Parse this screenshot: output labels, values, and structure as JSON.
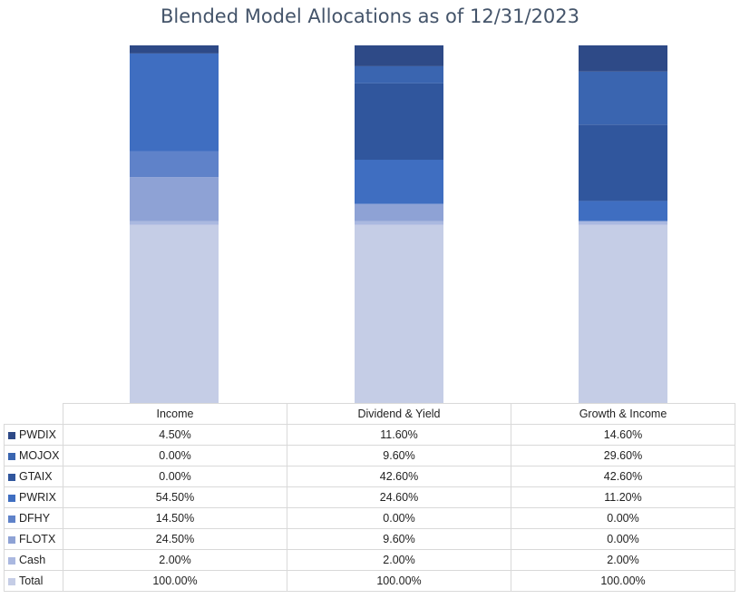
{
  "chart_data": {
    "type": "bar",
    "stacked": true,
    "title": "Blended Model Allocations as of 12/31/2023",
    "categories": [
      "Income",
      "Dividend & Yield",
      "Growth & Income"
    ],
    "series": [
      {
        "name": "PWDIX",
        "values": [
          "4.50%",
          "11.60%",
          "14.60%"
        ],
        "numeric": [
          4.5,
          11.6,
          14.6
        ],
        "color": "#2e4a87"
      },
      {
        "name": "MOJOX",
        "values": [
          "0.00%",
          "9.60%",
          "29.60%"
        ],
        "numeric": [
          0.0,
          9.6,
          29.6
        ],
        "color": "#3a65b0"
      },
      {
        "name": "GTAIX",
        "values": [
          "0.00%",
          "42.60%",
          "42.60%"
        ],
        "numeric": [
          0.0,
          42.6,
          42.6
        ],
        "color": "#30569d"
      },
      {
        "name": "PWRIX",
        "values": [
          "54.50%",
          "24.60%",
          "11.20%"
        ],
        "numeric": [
          54.5,
          24.6,
          11.2
        ],
        "color": "#3f6ec1"
      },
      {
        "name": "DFHY",
        "values": [
          "14.50%",
          "0.00%",
          "0.00%"
        ],
        "numeric": [
          14.5,
          0.0,
          0.0
        ],
        "color": "#5f82c9"
      },
      {
        "name": "FLOTX",
        "values": [
          "24.50%",
          "9.60%",
          "0.00%"
        ],
        "numeric": [
          24.5,
          9.6,
          0.0
        ],
        "color": "#8ea2d5"
      },
      {
        "name": "Cash",
        "values": [
          "2.00%",
          "2.00%",
          "2.00%"
        ],
        "numeric": [
          2.0,
          2.0,
          2.0
        ],
        "color": "#aab8e0"
      },
      {
        "name": "Total",
        "values": [
          "100.00%",
          "100.00%",
          "100.00%"
        ],
        "numeric": [
          100.0,
          100.0,
          100.0
        ],
        "color": "#c5cde6"
      }
    ],
    "ylim": [
      0,
      200
    ],
    "legend_position": "table-left",
    "grid": false
  }
}
